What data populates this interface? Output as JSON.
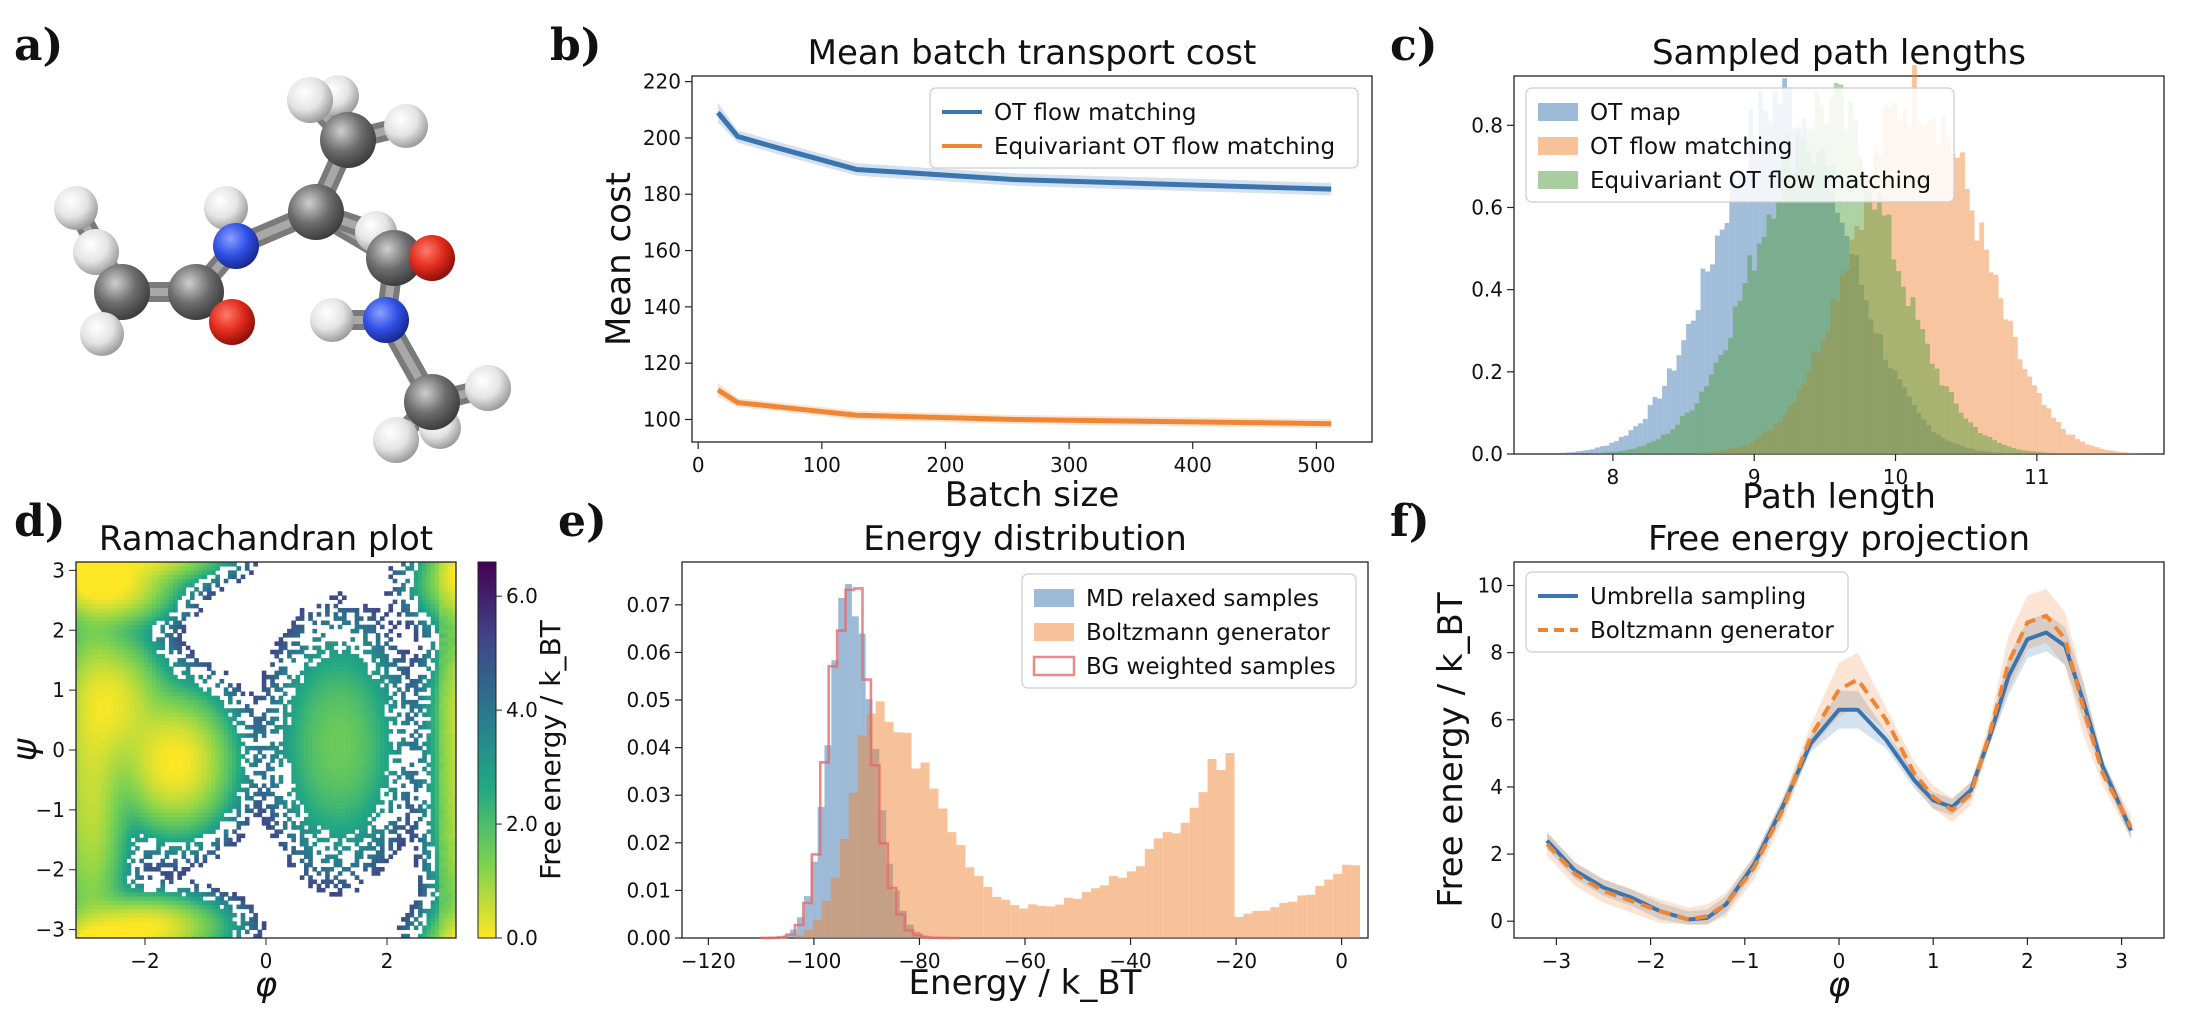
{
  "panel_labels": [
    "a)",
    "b)",
    "c)",
    "d)",
    "e)",
    "f)"
  ],
  "chart_data": [
    {
      "id": "b",
      "type": "line",
      "title": "Mean batch transport cost",
      "xlabel": "Batch size",
      "ylabel": "Mean cost",
      "xlim": [
        -5,
        545
      ],
      "ylim": [
        92,
        222
      ],
      "xticks": [
        0,
        100,
        200,
        300,
        400,
        500
      ],
      "yticks": [
        100,
        120,
        140,
        160,
        180,
        200,
        220
      ],
      "legend": "top-right",
      "series": [
        {
          "name": "OT flow matching",
          "color": "#3a75b0",
          "x": [
            16,
            32,
            64,
            128,
            256,
            512
          ],
          "y": [
            209,
            200.5,
            196.5,
            188.8,
            185.2,
            181.8
          ],
          "band": 2.2
        },
        {
          "name": "Equivariant OT flow matching",
          "color": "#ef8636",
          "x": [
            16,
            32,
            64,
            128,
            256,
            512
          ],
          "y": [
            110.5,
            106,
            104.5,
            101.5,
            100,
            98.5
          ],
          "band": 1.6
        }
      ]
    },
    {
      "id": "c",
      "type": "histogram",
      "title": "Sampled path lengths",
      "xlabel": "Path length",
      "ylabel": "",
      "xlim": [
        7.3,
        11.9
      ],
      "ylim": [
        0,
        0.92
      ],
      "xticks": [
        8,
        9,
        10,
        11
      ],
      "yticks": [
        0.0,
        0.2,
        0.4,
        0.6,
        0.8
      ],
      "legend": "top-left",
      "series": [
        {
          "name": "OT map",
          "color": "#3b75af",
          "mean": 9.2,
          "sd": 0.46,
          "peak": 0.87
        },
        {
          "name": "OT flow matching",
          "color": "#ef8636",
          "mean": 10.15,
          "sd": 0.45,
          "peak": 0.88
        },
        {
          "name": "Equivariant OT flow matching",
          "color": "#529e3f",
          "mean": 9.5,
          "sd": 0.47,
          "peak": 0.85
        }
      ]
    },
    {
      "id": "d",
      "type": "heatmap",
      "title": "Ramachandran plot",
      "xlabel": "φ",
      "ylabel": "ψ",
      "xlim": [
        -3.14,
        3.14
      ],
      "ylim": [
        -3.14,
        3.14
      ],
      "xticks": [
        -2,
        0,
        2
      ],
      "yticks": [
        -3,
        -2,
        -1,
        0,
        1,
        2,
        3
      ],
      "colorbar_label": "Free energy / k_BT",
      "colorbar_ticks": [
        0.0,
        2.0,
        4.0,
        6.0
      ],
      "colorbar_range": [
        0,
        6.6
      ]
    },
    {
      "id": "e",
      "type": "histogram",
      "title": "Energy distribution",
      "xlabel": "Energy / k_BT",
      "ylabel": "",
      "xlim": [
        -125,
        5
      ],
      "ylim": [
        0,
        0.079
      ],
      "xticks": [
        -120,
        -100,
        -80,
        -60,
        -40,
        -20,
        0
      ],
      "yticks": [
        0.0,
        0.01,
        0.02,
        0.03,
        0.04,
        0.05,
        0.06,
        0.07
      ],
      "legend": "top-right",
      "series": [
        {
          "name": "MD relaxed samples",
          "color": "#3b75af",
          "mean": -93.5,
          "sd_left": 3.8,
          "sd_right": 4.6,
          "peak": 0.071
        },
        {
          "name": "Boltzmann generator",
          "color": "#ef8636",
          "mean": -88,
          "sd_left": 5,
          "sd_right": 11,
          "peak": 0.047
        },
        {
          "name": "BG weighted samples",
          "color": "#e36b6b",
          "mean": -93.5,
          "sd_left": 3.6,
          "sd_right": 4.2,
          "peak": 0.074
        }
      ]
    },
    {
      "id": "f",
      "type": "line",
      "title": "Free energy projection",
      "xlabel": "φ",
      "ylabel": "Free energy / k_BT",
      "xlim": [
        -3.45,
        3.45
      ],
      "ylim": [
        -0.5,
        10.7
      ],
      "xticks": [
        -3,
        -2,
        -1,
        0,
        1,
        2,
        3
      ],
      "yticks": [
        0,
        2,
        4,
        6,
        8,
        10
      ],
      "legend": "top-left",
      "series": [
        {
          "name": "Umbrella sampling",
          "color": "#3a75b0",
          "style": "solid",
          "x": [
            -3.1,
            -2.8,
            -2.5,
            -2.2,
            -1.9,
            -1.6,
            -1.4,
            -1.2,
            -0.9,
            -0.6,
            -0.3,
            0.0,
            0.2,
            0.5,
            0.8,
            1.0,
            1.2,
            1.4,
            1.6,
            1.8,
            2.0,
            2.2,
            2.4,
            2.6,
            2.8,
            3.1
          ],
          "y": [
            2.4,
            1.5,
            1.0,
            0.7,
            0.3,
            0.05,
            0.1,
            0.5,
            1.7,
            3.4,
            5.3,
            6.3,
            6.3,
            5.4,
            4.2,
            3.6,
            3.4,
            3.9,
            5.5,
            7.3,
            8.4,
            8.6,
            8.2,
            6.5,
            4.6,
            2.7
          ],
          "band": 0.35
        },
        {
          "name": "Boltzmann generator",
          "color": "#ef8636",
          "style": "dashed",
          "x": [
            -3.1,
            -2.8,
            -2.5,
            -2.2,
            -1.9,
            -1.6,
            -1.4,
            -1.2,
            -0.9,
            -0.6,
            -0.3,
            0.0,
            0.2,
            0.5,
            0.8,
            1.0,
            1.2,
            1.4,
            1.6,
            1.8,
            2.0,
            2.2,
            2.4,
            2.6,
            2.8,
            3.1
          ],
          "y": [
            2.3,
            1.4,
            0.9,
            0.6,
            0.3,
            0.05,
            0.15,
            0.5,
            1.6,
            3.3,
            5.5,
            6.9,
            7.2,
            6.0,
            4.4,
            3.7,
            3.3,
            3.8,
            5.6,
            7.7,
            8.9,
            9.1,
            8.4,
            6.3,
            4.4,
            2.8
          ],
          "band": 0.5
        }
      ]
    }
  ]
}
